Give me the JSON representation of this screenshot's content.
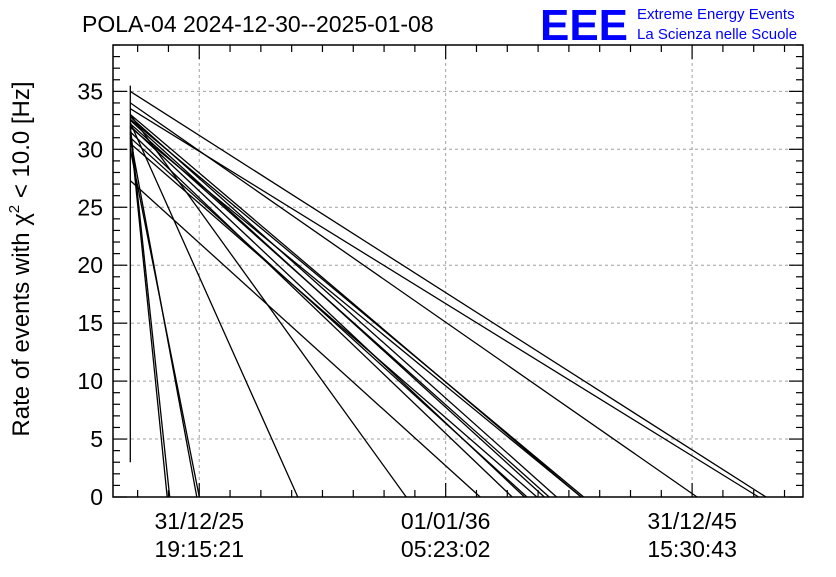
{
  "chart_data": {
    "type": "line",
    "title": "POLA-04 2024-12-30--2025-01-08",
    "xlabel": "",
    "ylabel": "Rate of events with χ² < 10.0 [Hz]",
    "ylabel_parts": {
      "prefix": "Rate of events with ",
      "chi": "χ",
      "sup": "2",
      "suffix": " < 10.0 [Hz]"
    },
    "ylim": [
      0,
      39
    ],
    "xlim": [
      -0.35,
      2.45
    ],
    "yticks": [
      0,
      5,
      10,
      15,
      20,
      25,
      30,
      35
    ],
    "xticks": [
      {
        "value": 0.0,
        "line1": "31/12/25",
        "line2": "19:15:21"
      },
      {
        "value": 1.0,
        "line1": "01/01/36",
        "line2": "05:23:02"
      },
      {
        "value": 2.0,
        "line1": "31/12/45",
        "line2": "15:30:43"
      }
    ],
    "grid": true,
    "series": [
      {
        "values": [
          [
            -0.28,
            3.0
          ],
          [
            -0.28,
            35.5
          ]
        ]
      },
      {
        "values": [
          [
            -0.28,
            35.0
          ],
          [
            2.3,
            0
          ]
        ]
      },
      {
        "values": [
          [
            -0.28,
            33.5
          ],
          [
            2.27,
            0
          ]
        ]
      },
      {
        "values": [
          [
            -0.28,
            34.0
          ],
          [
            2.02,
            0
          ]
        ]
      },
      {
        "values": [
          [
            -0.28,
            33.0
          ],
          [
            1.55,
            0
          ]
        ]
      },
      {
        "values": [
          [
            -0.28,
            32.5
          ],
          [
            1.4,
            0
          ]
        ]
      },
      {
        "values": [
          [
            -0.28,
            32.2
          ],
          [
            1.42,
            0
          ]
        ]
      },
      {
        "values": [
          [
            -0.28,
            32.8
          ],
          [
            1.45,
            0
          ]
        ]
      },
      {
        "values": [
          [
            -0.28,
            31.9
          ],
          [
            1.55,
            0
          ]
        ]
      },
      {
        "values": [
          [
            -0.28,
            32.6
          ],
          [
            1.56,
            0
          ]
        ]
      },
      {
        "values": [
          [
            -0.28,
            31.5
          ],
          [
            1.27,
            0
          ]
        ]
      },
      {
        "values": [
          [
            -0.28,
            31.0
          ],
          [
            1.33,
            0
          ]
        ]
      },
      {
        "values": [
          [
            -0.28,
            32.0
          ],
          [
            1.32,
            0
          ]
        ]
      },
      {
        "values": [
          [
            -0.28,
            30.5
          ],
          [
            1.37,
            0
          ]
        ]
      },
      {
        "values": [
          [
            -0.28,
            33.0
          ],
          [
            0.84,
            0
          ]
        ]
      },
      {
        "values": [
          [
            -0.28,
            31.0
          ],
          [
            -0.01,
            0
          ]
        ]
      },
      {
        "values": [
          [
            -0.28,
            30.0
          ],
          [
            0.0,
            0
          ]
        ]
      },
      {
        "values": [
          [
            -0.28,
            32.0
          ],
          [
            -0.12,
            0
          ]
        ]
      },
      {
        "values": [
          [
            -0.28,
            31.5
          ],
          [
            -0.13,
            0
          ]
        ]
      },
      {
        "values": [
          [
            -0.28,
            27.3
          ],
          [
            1.14,
            0
          ]
        ]
      },
      {
        "values": [
          [
            -0.28,
            32.3
          ],
          [
            0.4,
            0
          ]
        ]
      }
    ]
  },
  "branding": {
    "logo_text": "EEE",
    "line1": "Extreme Energy Events",
    "line2": "La Scienza nelle Scuole",
    "color": "#0000ff"
  }
}
